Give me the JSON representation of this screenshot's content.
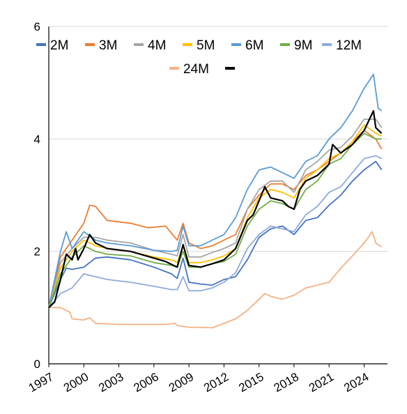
{
  "chart_data": {
    "type": "line",
    "title": "",
    "xlabel": "",
    "ylabel": "",
    "xlim": [
      1997,
      2026
    ],
    "ylim": [
      0,
      6
    ],
    "y_ticks": [
      "0",
      "2",
      "4",
      "6"
    ],
    "x_ticks": [
      "1997",
      "2000",
      "2003",
      "2006",
      "2009",
      "2012",
      "2015",
      "2018",
      "2021",
      "2024"
    ],
    "grid": "horizontal",
    "legend_position": "top",
    "series": [
      {
        "name": "2M",
        "color": "#4472C4",
        "values": [
          [
            1997.0,
            1.0
          ],
          [
            1998.0,
            1.5
          ],
          [
            1998.5,
            1.7
          ],
          [
            1999.0,
            1.68
          ],
          [
            2000.0,
            1.72
          ],
          [
            2001.0,
            1.88
          ],
          [
            2002.0,
            1.9
          ],
          [
            2004.0,
            1.85
          ],
          [
            2006.0,
            1.72
          ],
          [
            2007.5,
            1.6
          ],
          [
            2008.0,
            1.52
          ],
          [
            2008.5,
            1.88
          ],
          [
            2009.0,
            1.45
          ],
          [
            2010.0,
            1.42
          ],
          [
            2011.0,
            1.4
          ],
          [
            2012.0,
            1.5
          ],
          [
            2013.0,
            1.55
          ],
          [
            2014.0,
            1.85
          ],
          [
            2015.0,
            2.25
          ],
          [
            2016.0,
            2.4
          ],
          [
            2017.0,
            2.45
          ],
          [
            2018.0,
            2.3
          ],
          [
            2019.0,
            2.55
          ],
          [
            2020.0,
            2.6
          ],
          [
            2021.0,
            2.82
          ],
          [
            2022.0,
            3.0
          ],
          [
            2023.0,
            3.25
          ],
          [
            2024.0,
            3.45
          ],
          [
            2025.0,
            3.6
          ],
          [
            2025.5,
            3.45
          ]
        ]
      },
      {
        "name": "3M",
        "color": "#ED7D31",
        "values": [
          [
            1997.0,
            1.0
          ],
          [
            1998.0,
            1.9
          ],
          [
            1999.0,
            2.2
          ],
          [
            2000.0,
            2.5
          ],
          [
            2000.5,
            2.82
          ],
          [
            2001.0,
            2.8
          ],
          [
            2002.0,
            2.55
          ],
          [
            2004.0,
            2.5
          ],
          [
            2005.5,
            2.42
          ],
          [
            2007.0,
            2.45
          ],
          [
            2008.0,
            2.2
          ],
          [
            2008.5,
            2.5
          ],
          [
            2009.0,
            2.15
          ],
          [
            2010.0,
            2.05
          ],
          [
            2011.0,
            2.1
          ],
          [
            2012.0,
            2.2
          ],
          [
            2013.0,
            2.3
          ],
          [
            2014.0,
            2.75
          ],
          [
            2015.0,
            3.0
          ],
          [
            2016.0,
            3.2
          ],
          [
            2017.0,
            3.2
          ],
          [
            2018.0,
            3.1
          ],
          [
            2019.0,
            3.35
          ],
          [
            2020.0,
            3.45
          ],
          [
            2021.0,
            3.6
          ],
          [
            2022.0,
            3.75
          ],
          [
            2023.0,
            3.95
          ],
          [
            2024.0,
            4.15
          ],
          [
            2025.0,
            4.0
          ],
          [
            2025.5,
            3.82
          ]
        ]
      },
      {
        "name": "4M",
        "color": "#A5A5A5",
        "values": [
          [
            1997.0,
            1.0
          ],
          [
            1998.0,
            1.8
          ],
          [
            1999.0,
            2.05
          ],
          [
            2000.0,
            2.25
          ],
          [
            2001.0,
            2.25
          ],
          [
            2002.0,
            2.2
          ],
          [
            2004.0,
            2.15
          ],
          [
            2006.0,
            2.02
          ],
          [
            2007.5,
            1.95
          ],
          [
            2008.0,
            1.92
          ],
          [
            2008.5,
            2.3
          ],
          [
            2009.0,
            1.9
          ],
          [
            2010.0,
            1.9
          ],
          [
            2011.0,
            1.98
          ],
          [
            2012.0,
            2.05
          ],
          [
            2013.0,
            2.15
          ],
          [
            2014.0,
            2.75
          ],
          [
            2015.0,
            3.1
          ],
          [
            2016.0,
            3.25
          ],
          [
            2017.0,
            3.25
          ],
          [
            2018.0,
            3.05
          ],
          [
            2019.0,
            3.45
          ],
          [
            2020.0,
            3.6
          ],
          [
            2021.0,
            3.8
          ],
          [
            2022.0,
            3.85
          ],
          [
            2023.0,
            4.05
          ],
          [
            2024.0,
            4.35
          ],
          [
            2025.0,
            4.35
          ],
          [
            2025.5,
            4.2
          ]
        ]
      },
      {
        "name": "5M",
        "color": "#FFC000",
        "values": [
          [
            1997.0,
            1.0
          ],
          [
            1998.0,
            1.7
          ],
          [
            1999.0,
            2.0
          ],
          [
            2000.0,
            2.2
          ],
          [
            2001.0,
            2.1
          ],
          [
            2002.0,
            2.05
          ],
          [
            2004.0,
            2.0
          ],
          [
            2006.0,
            1.9
          ],
          [
            2007.5,
            1.85
          ],
          [
            2008.0,
            1.8
          ],
          [
            2008.5,
            2.1
          ],
          [
            2009.0,
            1.8
          ],
          [
            2010.0,
            1.8
          ],
          [
            2011.0,
            1.85
          ],
          [
            2012.0,
            1.92
          ],
          [
            2013.0,
            2.05
          ],
          [
            2014.0,
            2.6
          ],
          [
            2015.0,
            2.95
          ],
          [
            2016.0,
            3.1
          ],
          [
            2017.0,
            3.05
          ],
          [
            2018.0,
            2.95
          ],
          [
            2019.0,
            3.3
          ],
          [
            2020.0,
            3.45
          ],
          [
            2021.0,
            3.65
          ],
          [
            2022.0,
            3.75
          ],
          [
            2023.0,
            3.95
          ],
          [
            2024.0,
            4.25
          ],
          [
            2025.0,
            4.1
          ],
          [
            2025.5,
            4.05
          ]
        ]
      },
      {
        "name": "6M",
        "color": "#5B9BD5",
        "values": [
          [
            1997.0,
            1.0
          ],
          [
            1998.0,
            2.0
          ],
          [
            1998.5,
            2.35
          ],
          [
            1999.0,
            2.05
          ],
          [
            2000.0,
            2.35
          ],
          [
            2001.0,
            2.2
          ],
          [
            2002.0,
            2.15
          ],
          [
            2004.0,
            2.1
          ],
          [
            2006.0,
            2.02
          ],
          [
            2007.5,
            2.0
          ],
          [
            2008.0,
            2.02
          ],
          [
            2008.5,
            2.45
          ],
          [
            2009.0,
            2.1
          ],
          [
            2010.0,
            2.1
          ],
          [
            2011.0,
            2.2
          ],
          [
            2012.0,
            2.3
          ],
          [
            2013.0,
            2.6
          ],
          [
            2014.0,
            3.1
          ],
          [
            2015.0,
            3.45
          ],
          [
            2016.0,
            3.5
          ],
          [
            2017.0,
            3.4
          ],
          [
            2018.0,
            3.3
          ],
          [
            2019.0,
            3.6
          ],
          [
            2020.0,
            3.7
          ],
          [
            2021.0,
            4.0
          ],
          [
            2022.0,
            4.2
          ],
          [
            2023.0,
            4.5
          ],
          [
            2024.0,
            4.9
          ],
          [
            2024.8,
            5.15
          ],
          [
            2025.2,
            4.55
          ],
          [
            2025.5,
            4.5
          ]
        ]
      },
      {
        "name": "9M",
        "color": "#70AD47",
        "values": [
          [
            1997.0,
            1.0
          ],
          [
            1998.0,
            1.6
          ],
          [
            1999.0,
            1.9
          ],
          [
            2000.0,
            2.1
          ],
          [
            2001.0,
            2.0
          ],
          [
            2002.0,
            1.95
          ],
          [
            2004.0,
            1.92
          ],
          [
            2006.0,
            1.8
          ],
          [
            2007.5,
            1.75
          ],
          [
            2008.0,
            1.72
          ],
          [
            2008.5,
            2.0
          ],
          [
            2009.0,
            1.72
          ],
          [
            2010.0,
            1.72
          ],
          [
            2011.0,
            1.78
          ],
          [
            2012.0,
            1.82
          ],
          [
            2013.0,
            1.95
          ],
          [
            2014.0,
            2.45
          ],
          [
            2015.0,
            2.75
          ],
          [
            2016.0,
            2.9
          ],
          [
            2017.0,
            2.85
          ],
          [
            2018.0,
            2.75
          ],
          [
            2019.0,
            3.1
          ],
          [
            2020.0,
            3.25
          ],
          [
            2021.0,
            3.55
          ],
          [
            2022.0,
            3.65
          ],
          [
            2023.0,
            3.9
          ],
          [
            2024.0,
            4.1
          ],
          [
            2025.0,
            4.0
          ],
          [
            2025.5,
            4.0
          ]
        ]
      },
      {
        "name": "12M",
        "color": "#8FAADC",
        "values": [
          [
            1997.0,
            1.0
          ],
          [
            1998.0,
            1.25
          ],
          [
            1999.0,
            1.35
          ],
          [
            2000.0,
            1.6
          ],
          [
            2001.0,
            1.55
          ],
          [
            2002.0,
            1.5
          ],
          [
            2004.0,
            1.45
          ],
          [
            2006.0,
            1.38
          ],
          [
            2007.5,
            1.32
          ],
          [
            2008.0,
            1.32
          ],
          [
            2008.5,
            1.55
          ],
          [
            2009.0,
            1.3
          ],
          [
            2010.0,
            1.3
          ],
          [
            2011.0,
            1.35
          ],
          [
            2012.0,
            1.45
          ],
          [
            2013.0,
            1.62
          ],
          [
            2014.0,
            2.05
          ],
          [
            2015.0,
            2.3
          ],
          [
            2016.0,
            2.45
          ],
          [
            2017.0,
            2.4
          ],
          [
            2018.0,
            2.35
          ],
          [
            2019.0,
            2.65
          ],
          [
            2020.0,
            2.8
          ],
          [
            2021.0,
            3.05
          ],
          [
            2022.0,
            3.15
          ],
          [
            2023.0,
            3.4
          ],
          [
            2024.0,
            3.65
          ],
          [
            2025.0,
            3.7
          ],
          [
            2025.5,
            3.65
          ]
        ]
      },
      {
        "name": "24M",
        "color": "#F4B183",
        "values": [
          [
            1997.0,
            1.0
          ],
          [
            1998.0,
            1.0
          ],
          [
            1998.8,
            0.92
          ],
          [
            1999.0,
            0.8
          ],
          [
            2000.0,
            0.78
          ],
          [
            2000.5,
            0.82
          ],
          [
            2001.0,
            0.72
          ],
          [
            2003.0,
            0.7
          ],
          [
            2005.0,
            0.7
          ],
          [
            2007.0,
            0.7
          ],
          [
            2007.8,
            0.72
          ],
          [
            2008.0,
            0.68
          ],
          [
            2009.0,
            0.65
          ],
          [
            2010.0,
            0.65
          ],
          [
            2011.0,
            0.64
          ],
          [
            2012.0,
            0.72
          ],
          [
            2013.0,
            0.8
          ],
          [
            2014.0,
            0.95
          ],
          [
            2015.0,
            1.15
          ],
          [
            2015.5,
            1.25
          ],
          [
            2016.0,
            1.2
          ],
          [
            2017.0,
            1.15
          ],
          [
            2018.0,
            1.22
          ],
          [
            2019.0,
            1.35
          ],
          [
            2020.0,
            1.4
          ],
          [
            2021.0,
            1.45
          ],
          [
            2022.0,
            1.7
          ],
          [
            2023.0,
            1.92
          ],
          [
            2024.0,
            2.15
          ],
          [
            2024.7,
            2.35
          ],
          [
            2025.0,
            2.15
          ],
          [
            2025.5,
            2.08
          ]
        ]
      },
      {
        "name": "",
        "color": "#000000",
        "values": [
          [
            1997.0,
            1.0
          ],
          [
            1997.5,
            1.1
          ],
          [
            1998.0,
            1.5
          ],
          [
            1998.5,
            1.95
          ],
          [
            1999.0,
            1.85
          ],
          [
            1999.3,
            2.05
          ],
          [
            1999.5,
            1.85
          ],
          [
            2000.0,
            2.05
          ],
          [
            2000.5,
            2.3
          ],
          [
            2001.0,
            2.15
          ],
          [
            2001.5,
            2.1
          ],
          [
            2002.0,
            2.05
          ],
          [
            2004.0,
            2.0
          ],
          [
            2006.0,
            1.88
          ],
          [
            2007.0,
            1.82
          ],
          [
            2008.0,
            1.72
          ],
          [
            2008.5,
            2.12
          ],
          [
            2009.0,
            1.75
          ],
          [
            2010.0,
            1.72
          ],
          [
            2011.0,
            1.78
          ],
          [
            2012.0,
            1.85
          ],
          [
            2012.5,
            1.95
          ],
          [
            2013.0,
            2.05
          ],
          [
            2014.0,
            2.55
          ],
          [
            2014.5,
            2.65
          ],
          [
            2015.0,
            2.9
          ],
          [
            2015.5,
            3.15
          ],
          [
            2016.0,
            2.95
          ],
          [
            2017.0,
            2.9
          ],
          [
            2017.5,
            2.8
          ],
          [
            2018.0,
            2.75
          ],
          [
            2018.5,
            3.1
          ],
          [
            2019.0,
            3.25
          ],
          [
            2020.0,
            3.35
          ],
          [
            2021.0,
            3.55
          ],
          [
            2021.3,
            3.9
          ],
          [
            2022.0,
            3.75
          ],
          [
            2023.0,
            3.9
          ],
          [
            2024.0,
            4.15
          ],
          [
            2024.8,
            4.5
          ],
          [
            2025.0,
            4.2
          ],
          [
            2025.5,
            4.1
          ]
        ]
      }
    ]
  }
}
